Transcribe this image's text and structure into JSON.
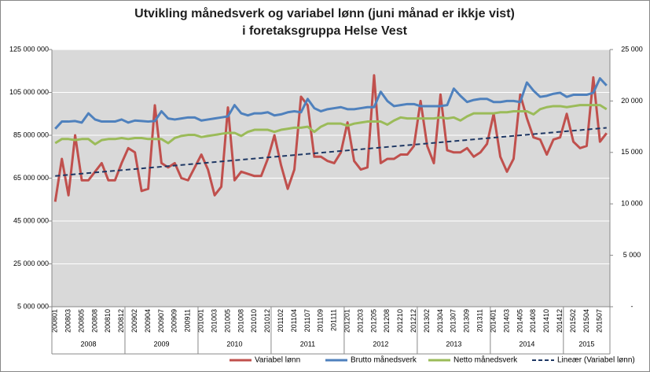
{
  "chart_data": {
    "type": "line",
    "title": [
      "Utvikling månedsverk og variabel lønn (juni månad er ikkje vist)",
      "i foretaksgruppa Helse Vest"
    ],
    "categories": [
      "200801",
      null,
      "200803",
      null,
      "200805",
      null,
      "200808",
      null,
      "200810",
      null,
      "200812",
      null,
      "200902",
      null,
      "200904",
      null,
      "200907",
      null,
      "200909",
      null,
      "200911",
      null,
      "201001",
      null,
      "201003",
      null,
      "201005",
      null,
      "201008",
      null,
      "201010",
      null,
      "201012",
      null,
      "201102",
      null,
      "201104",
      null,
      "201107",
      null,
      "201109",
      null,
      "201111",
      null,
      "201201",
      null,
      "201203",
      null,
      "201205",
      null,
      "201208",
      null,
      "201210",
      null,
      "201212",
      null,
      "201302",
      null,
      "201304",
      null,
      "201307",
      null,
      "201309",
      null,
      "201311",
      null,
      "201401",
      null,
      "201403",
      null,
      "201405",
      null,
      "201408",
      null,
      "201410",
      null,
      "201412",
      null,
      "201502",
      null,
      "201504",
      null,
      "201507",
      null
    ],
    "years": [
      "2008",
      "2009",
      "2010",
      "2011",
      "2012",
      "2013",
      "2014",
      "2015"
    ],
    "series": [
      {
        "name": "Variabel lønn",
        "color": "#c0504d",
        "axis": "y",
        "values": [
          54000000,
          74000000,
          57000000,
          85000000,
          64000000,
          64000000,
          68000000,
          72000000,
          64000000,
          64000000,
          72000000,
          79000000,
          77000000,
          59000000,
          60000000,
          99000000,
          72000000,
          70000000,
          72000000,
          65000000,
          64000000,
          70000000,
          76000000,
          69000000,
          57000000,
          61000000,
          98000000,
          64000000,
          68000000,
          67000000,
          66000000,
          66000000,
          74000000,
          85000000,
          71000000,
          60000000,
          69000000,
          103000000,
          99000000,
          75000000,
          75000000,
          73000000,
          72000000,
          77000000,
          91000000,
          73000000,
          69000000,
          70000000,
          113000000,
          72000000,
          74000000,
          74000000,
          76000000,
          76000000,
          80000000,
          101000000,
          80000000,
          72000000,
          104000000,
          78000000,
          77000000,
          77000000,
          79000000,
          75000000,
          77000000,
          81000000,
          95000000,
          75000000,
          68000000,
          74000000,
          104000000,
          93000000,
          84000000,
          83000000,
          76000000,
          83000000,
          84000000,
          95000000,
          82000000,
          79000000,
          80000000,
          112000000,
          82000000,
          86000000
        ]
      },
      {
        "name": "Brutto månedsverk",
        "color": "#4f81bd",
        "axis": "y2",
        "values": [
          17300,
          18000,
          18000,
          18050,
          17900,
          18800,
          18200,
          18000,
          18000,
          18000,
          18200,
          17900,
          18100,
          18050,
          18000,
          18050,
          19000,
          18300,
          18200,
          18300,
          18400,
          18400,
          18100,
          18200,
          18300,
          18400,
          18500,
          19600,
          18800,
          18600,
          18800,
          18800,
          18900,
          18600,
          18700,
          18900,
          19000,
          18900,
          20200,
          19300,
          19000,
          19200,
          19300,
          19400,
          19200,
          19200,
          19300,
          19400,
          19400,
          20900,
          20000,
          19500,
          19600,
          19700,
          19700,
          19500,
          19500,
          19500,
          19500,
          19600,
          21200,
          20500,
          19900,
          20100,
          20200,
          20200,
          19900,
          19900,
          20000,
          20000,
          19900,
          21800,
          21000,
          20400,
          20500,
          20700,
          20800,
          20400,
          20600,
          20600,
          20600,
          20800,
          22200,
          21500
        ]
      },
      {
        "name": "Netto månedsverk",
        "color": "#9bbb59",
        "axis": "y2",
        "values": [
          15900,
          16300,
          16300,
          16200,
          16300,
          16300,
          15800,
          16200,
          16300,
          16300,
          16400,
          16300,
          16400,
          16400,
          16300,
          16300,
          16300,
          15900,
          16400,
          16600,
          16700,
          16700,
          16500,
          16600,
          16700,
          16800,
          16900,
          16900,
          16600,
          17000,
          17200,
          17200,
          17200,
          17000,
          17200,
          17300,
          17400,
          17400,
          17500,
          17000,
          17500,
          17800,
          17800,
          17800,
          17600,
          17800,
          17900,
          18000,
          18000,
          18000,
          17700,
          18100,
          18400,
          18300,
          18300,
          18300,
          18300,
          18300,
          18400,
          18300,
          18400,
          18100,
          18500,
          18800,
          18800,
          18800,
          18800,
          18900,
          18900,
          19000,
          19000,
          19000,
          18700,
          19200,
          19400,
          19500,
          19500,
          19400,
          19500,
          19600,
          19600,
          19600,
          19600,
          19200
        ]
      }
    ],
    "trendline": {
      "name": "Lineær (Variabel lønn)",
      "color": "#1f3864",
      "axis": "y",
      "values": [
        66000000,
        88500000
      ]
    },
    "ylim": [
      5000000,
      125000000
    ],
    "yticks": [
      {
        "value": 5000000,
        "label": "5 000 000"
      },
      {
        "value": 25000000,
        "label": "25 000 000"
      },
      {
        "value": 45000000,
        "label": "45 000 000"
      },
      {
        "value": 65000000,
        "label": "65 000 000"
      },
      {
        "value": 85000000,
        "label": "85 000 000"
      },
      {
        "value": 105000000,
        "label": "105 000 000"
      },
      {
        "value": 125000000,
        "label": "125 000 000"
      }
    ],
    "y2lim": [
      0,
      25000
    ],
    "y2ticks": [
      {
        "value": 0,
        "label": "-"
      },
      {
        "value": 5000,
        "label": "5 000"
      },
      {
        "value": 10000,
        "label": "10 000"
      },
      {
        "value": 15000,
        "label": "15 000"
      },
      {
        "value": 20000,
        "label": "20 000"
      },
      {
        "value": 25000,
        "label": "25 000"
      }
    ],
    "grid": true,
    "legend": "bottom"
  }
}
